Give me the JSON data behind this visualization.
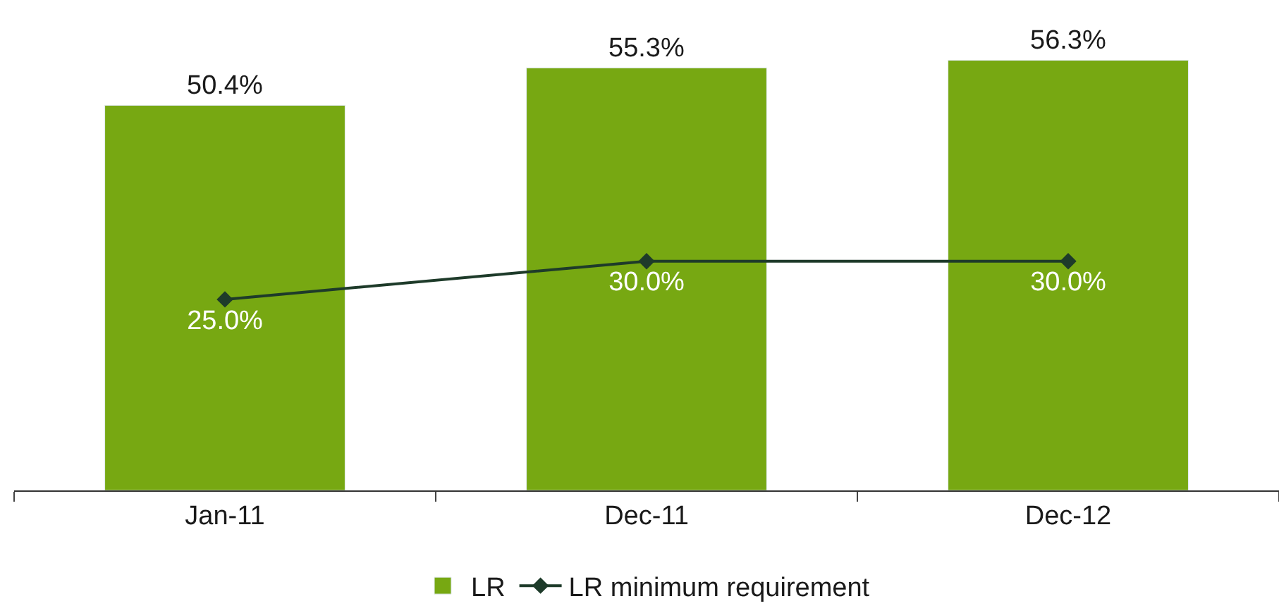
{
  "chart_data": {
    "type": "bar",
    "categories": [
      "Jan-11",
      "Dec-11",
      "Dec-12"
    ],
    "series": [
      {
        "name": "LR",
        "color": "#77a812",
        "values": [
          50.4,
          55.3,
          56.3
        ],
        "value_labels": [
          "50.4%",
          "55.3%",
          "56.3%"
        ]
      },
      {
        "name": "LR minimum requirement",
        "type": "line",
        "color": "#1e3b2a",
        "values": [
          25.0,
          30.0,
          30.0
        ],
        "value_labels": [
          "25.0%",
          "30.0%",
          "30.0%"
        ],
        "marker": "diamond"
      }
    ],
    "tick_labels": "x",
    "legend": "bottom"
  }
}
